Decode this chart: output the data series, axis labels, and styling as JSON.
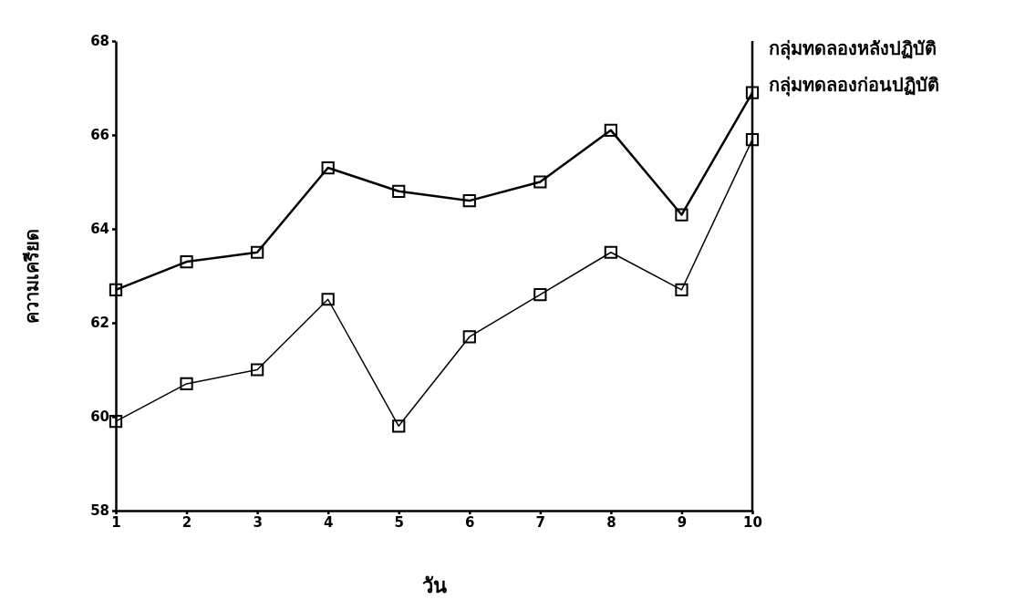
{
  "chart_data": {
    "type": "line",
    "xlabel": "วัน",
    "ylabel": "ความเครียด",
    "x": [
      1,
      2,
      3,
      4,
      5,
      6,
      7,
      8,
      9,
      10
    ],
    "xlim": [
      1,
      10
    ],
    "xticks": [
      1,
      2,
      3,
      4,
      5,
      6,
      7,
      8,
      9,
      10
    ],
    "ylim": [
      58,
      68
    ],
    "yticks": [
      58,
      60,
      62,
      64,
      66,
      68
    ],
    "marker": "square",
    "line_style": "solid",
    "grid": false,
    "legend": false,
    "series": [
      {
        "name": "กลุ่มทดลองหลังปฏิบัติ",
        "color": "#000000",
        "values": [
          62.7,
          63.3,
          63.5,
          65.3,
          64.8,
          64.6,
          65.0,
          66.1,
          64.3,
          66.9
        ]
      },
      {
        "name": "กลุ่มทดลองก่อนปฏิบัติ",
        "color": "#000000",
        "values": [
          59.9,
          60.7,
          61.0,
          62.5,
          59.8,
          61.7,
          62.6,
          63.5,
          62.7,
          65.9
        ]
      }
    ]
  }
}
